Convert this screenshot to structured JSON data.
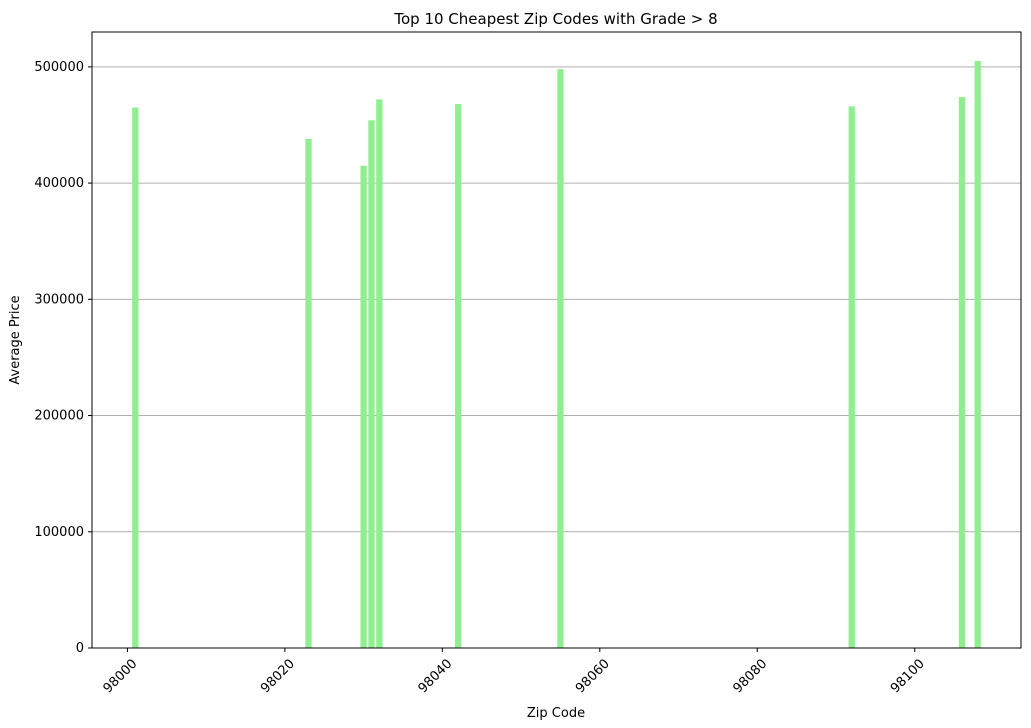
{
  "chart_data": {
    "type": "bar",
    "title": "Top 10 Cheapest Zip Codes with Grade > 8",
    "xlabel": "Zip Code",
    "ylabel": "Average Price",
    "x": [
      98001,
      98023,
      98030,
      98031,
      98032,
      98042,
      98055,
      98092,
      98106,
      98108
    ],
    "values": [
      465000,
      438000,
      415000,
      454000,
      472000,
      468000,
      498000,
      466000,
      474000,
      505000
    ],
    "xlim": [
      97995.5,
      98113.5
    ],
    "ylim": [
      0,
      530000
    ],
    "xticks": [
      98000,
      98020,
      98040,
      98060,
      98080,
      98100
    ],
    "yticks": [
      0,
      100000,
      200000,
      300000,
      400000,
      500000
    ],
    "bar_color": "#90ee90",
    "grid": "y-axis"
  }
}
